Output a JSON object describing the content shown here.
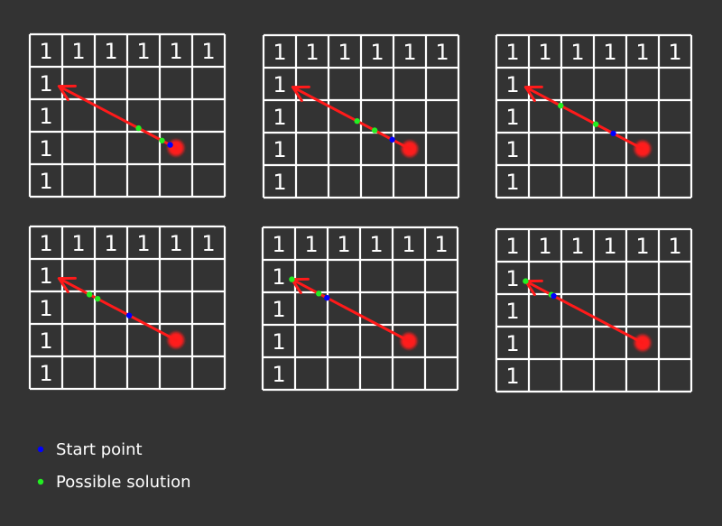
{
  "grid": {
    "rows": 5,
    "cols": 6,
    "top_row_label": "1",
    "left_col_label": "1"
  },
  "colors": {
    "background": "#333333",
    "grid": "#ffffff",
    "arrow": "#ff1a1a",
    "start_point": "#0000ff",
    "solution_point": "#22ee22"
  },
  "panels": [
    {
      "start_point": 0.95,
      "solutions": [
        0.68,
        0.88
      ]
    },
    {
      "start_point": 0.85,
      "solutions": [
        0.55,
        0.7
      ]
    },
    {
      "start_point": 0.75,
      "solutions": [
        0.3,
        0.6
      ]
    },
    {
      "start_point": 0.6,
      "solutions": [
        0.26,
        0.33
      ]
    },
    {
      "start_point": 0.3,
      "solutions": [
        0.0,
        0.23
      ]
    },
    {
      "start_point": 0.24,
      "solutions": [
        0.0,
        0.22
      ]
    }
  ],
  "legend": {
    "items": [
      {
        "label": "Start point",
        "icon": "blue-dot-icon",
        "color": "#0000ff"
      },
      {
        "label": "Possible solution",
        "icon": "green-dot-icon",
        "color": "#22ee22"
      }
    ]
  }
}
